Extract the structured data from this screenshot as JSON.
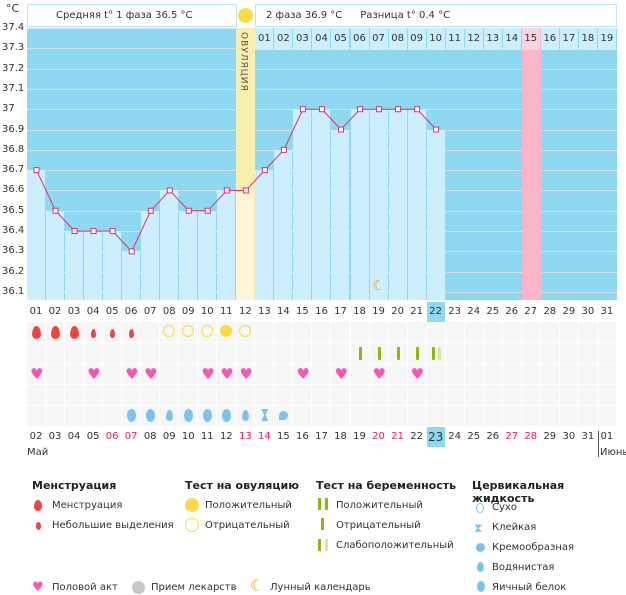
{
  "unit": "°C",
  "header": {
    "phase1": "Средняя t° 1 фаза 36.5 °C",
    "phase2": "2 фаза 36.9 °C",
    "diff": "Разница t° 0.4 °C",
    "ovulation_label": "ОВУЛЯЦИЯ"
  },
  "y_ticks": [
    "37.4",
    "37.3",
    "37.2",
    "37.1",
    "37",
    "36.9",
    "36.8",
    "36.7",
    "36.6",
    "36.5",
    "36.4",
    "36.3",
    "36.2",
    "36.1"
  ],
  "chart_data": {
    "type": "line",
    "ylim": [
      36.1,
      37.4
    ],
    "x": [
      "01",
      "02",
      "03",
      "04",
      "05",
      "06",
      "07",
      "08",
      "09",
      "10",
      "11",
      "12",
      "13",
      "14",
      "15",
      "16",
      "17",
      "18",
      "19",
      "20",
      "21",
      "22"
    ],
    "values": [
      36.7,
      36.5,
      36.4,
      36.4,
      36.4,
      36.3,
      36.5,
      36.6,
      36.5,
      36.5,
      36.6,
      36.6,
      36.7,
      36.8,
      37.0,
      37.0,
      36.9,
      37.0,
      37.0,
      37.0,
      37.0,
      36.9
    ]
  },
  "ovulation_day": 12,
  "highlight_day": 27,
  "current_cycle_day": 22,
  "moon_day": 19,
  "luteal_days": [
    "01",
    "02",
    "03",
    "04",
    "05",
    "06",
    "07",
    "08",
    "09",
    "10",
    "11",
    "12",
    "13",
    "14",
    "15",
    "16",
    "17",
    "18",
    "19"
  ],
  "cycle_days": [
    "01",
    "02",
    "03",
    "04",
    "05",
    "06",
    "07",
    "08",
    "09",
    "10",
    "11",
    "12",
    "13",
    "14",
    "15",
    "16",
    "17",
    "18",
    "19",
    "20",
    "21",
    "22",
    "23",
    "24",
    "25",
    "26",
    "27",
    "28",
    "29",
    "30",
    "31"
  ],
  "dates": [
    "02",
    "03",
    "04",
    "05",
    "06",
    "07",
    "08",
    "09",
    "10",
    "11",
    "12",
    "13",
    "14",
    "15",
    "16",
    "17",
    "18",
    "19",
    "20",
    "21",
    "22",
    "23",
    "24",
    "25",
    "26",
    "27",
    "28",
    "29",
    "30",
    "31",
    "01"
  ],
  "weekend_dates": [
    "06",
    "07",
    "13",
    "14",
    "20",
    "21",
    "27",
    "28"
  ],
  "today_date_index": 21,
  "month1": "Май",
  "month2": "Июнь",
  "menstruation": {
    "1": "heavy",
    "2": "heavy",
    "3": "heavy",
    "4": "light",
    "5": "light",
    "6": "light"
  },
  "ovulation_tests": {
    "8": "neg",
    "9": "neg",
    "10": "neg",
    "11": "pos",
    "12": "neg"
  },
  "pregnancy_tests": {
    "18": "neg",
    "19": "neg",
    "20": "neg",
    "21": "neg",
    "22": "weak"
  },
  "intercourse_days": [
    1,
    4,
    6,
    7,
    10,
    11,
    12,
    15,
    17,
    19,
    21
  ],
  "cervical": {
    "6": "egg",
    "7": "egg",
    "8": "watery",
    "9": "egg",
    "10": "egg",
    "11": "egg",
    "12": "watery",
    "13": "sticky",
    "14": "creamy"
  },
  "colors": {
    "sky": "#8fd8f2",
    "bar": "#cdeefc",
    "line": "#e0306a",
    "ovu": "#f7eeb0",
    "pink": "#f8b6c8",
    "red": "#f0453e",
    "yellow": "#fcd94a",
    "green": "#8cb814",
    "heart": "#fb56b4",
    "blue": "#79c3ee",
    "moon": "#f39a1a"
  },
  "legend": {
    "menstr_title": "Менструация",
    "menstr_heavy": "Менструация",
    "menstr_light": "Небольшие выделения",
    "ovu_title": "Тест на овуляцию",
    "ovu_pos": "Положительный",
    "ovu_neg": "Отрицательный",
    "preg_title": "Тест на беременность",
    "preg_pos": "Положительный",
    "preg_neg": "Отрицательный",
    "preg_weak": "Слабоположительный",
    "cerv_title": "Цервикальная жидкость",
    "cerv_dry": "Сухо",
    "cerv_sticky": "Клейкая",
    "cerv_creamy": "Кремообразная",
    "cerv_watery": "Водянистая",
    "cerv_egg": "Яичный белок",
    "sex": "Половой акт",
    "meds": "Прием лекарств",
    "moon": "Лунный календарь"
  }
}
